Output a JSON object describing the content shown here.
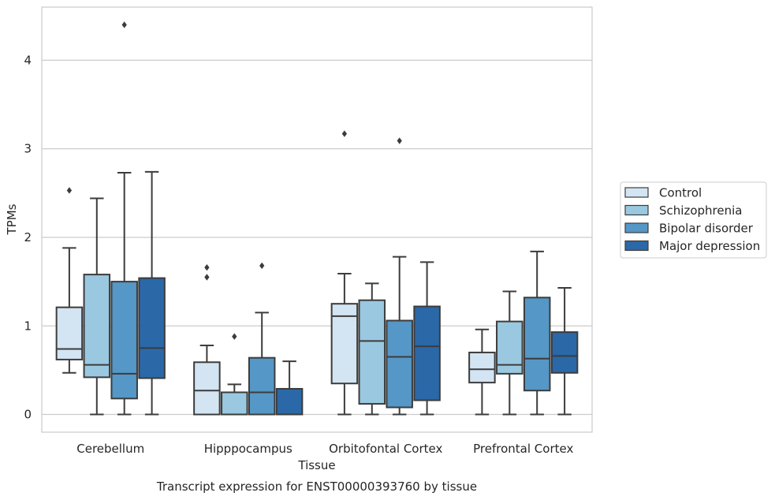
{
  "chart_data": {
    "type": "box",
    "xlabel": "Tissue",
    "ylabel": "TPMs",
    "caption": "Transcript expression for ENST00000393760 by tissue",
    "ylim": [
      -0.2,
      4.6
    ],
    "yticks": [
      "0",
      "1",
      "2",
      "3",
      "4"
    ],
    "categories": [
      "Cerebellum",
      "Hipppocampus",
      "Orbitofontal Cortex",
      "Prefrontal Cortex"
    ],
    "legend_position": "right",
    "grid": "horizontal",
    "colors": {
      "Control": "#d3e4f3",
      "Schizophrenia": "#9ac8e0",
      "Bipolar disorder": "#5597c6",
      "Major depression": "#2a68a8",
      "edge": "#3c3c3c",
      "grid": "#cccccc"
    },
    "series": [
      {
        "name": "Control",
        "boxes": [
          {
            "whislo": 0.47,
            "q1": 0.62,
            "med": 0.74,
            "q3": 1.21,
            "whishi": 1.88,
            "fliers": [
              2.53
            ]
          },
          {
            "whislo": 0.0,
            "q1": 0.0,
            "med": 0.27,
            "q3": 0.59,
            "whishi": 0.78,
            "fliers": [
              1.55,
              1.66
            ]
          },
          {
            "whislo": 0.0,
            "q1": 0.35,
            "med": 1.11,
            "q3": 1.25,
            "whishi": 1.59,
            "fliers": [
              3.17
            ]
          },
          {
            "whislo": 0.0,
            "q1": 0.36,
            "med": 0.51,
            "q3": 0.7,
            "whishi": 0.96,
            "fliers": []
          }
        ]
      },
      {
        "name": "Schizophrenia",
        "boxes": [
          {
            "whislo": 0.0,
            "q1": 0.42,
            "med": 0.56,
            "q3": 1.58,
            "whishi": 2.44,
            "fliers": []
          },
          {
            "whislo": 0.0,
            "q1": 0.0,
            "med": 0.0,
            "q3": 0.25,
            "whishi": 0.34,
            "fliers": [
              0.88
            ]
          },
          {
            "whislo": 0.0,
            "q1": 0.12,
            "med": 0.83,
            "q3": 1.29,
            "whishi": 1.48,
            "fliers": []
          },
          {
            "whislo": 0.0,
            "q1": 0.46,
            "med": 0.56,
            "q3": 1.05,
            "whishi": 1.39,
            "fliers": []
          }
        ]
      },
      {
        "name": "Bipolar disorder",
        "boxes": [
          {
            "whislo": 0.0,
            "q1": 0.18,
            "med": 0.46,
            "q3": 1.5,
            "whishi": 2.73,
            "fliers": [
              4.4
            ]
          },
          {
            "whislo": 0.0,
            "q1": 0.0,
            "med": 0.25,
            "q3": 0.64,
            "whishi": 1.15,
            "fliers": [
              1.68
            ]
          },
          {
            "whislo": 0.0,
            "q1": 0.08,
            "med": 0.65,
            "q3": 1.06,
            "whishi": 1.78,
            "fliers": [
              3.09
            ]
          },
          {
            "whislo": 0.0,
            "q1": 0.27,
            "med": 0.63,
            "q3": 1.32,
            "whishi": 1.84,
            "fliers": []
          }
        ]
      },
      {
        "name": "Major depression",
        "boxes": [
          {
            "whislo": 0.0,
            "q1": 0.41,
            "med": 0.75,
            "q3": 1.54,
            "whishi": 2.74,
            "fliers": []
          },
          {
            "whislo": 0.0,
            "q1": 0.0,
            "med": 0.0,
            "q3": 0.29,
            "whishi": 0.6,
            "fliers": []
          },
          {
            "whislo": 0.0,
            "q1": 0.16,
            "med": 0.77,
            "q3": 1.22,
            "whishi": 1.72,
            "fliers": []
          },
          {
            "whislo": 0.0,
            "q1": 0.47,
            "med": 0.66,
            "q3": 0.93,
            "whishi": 1.43,
            "fliers": []
          }
        ]
      }
    ]
  }
}
